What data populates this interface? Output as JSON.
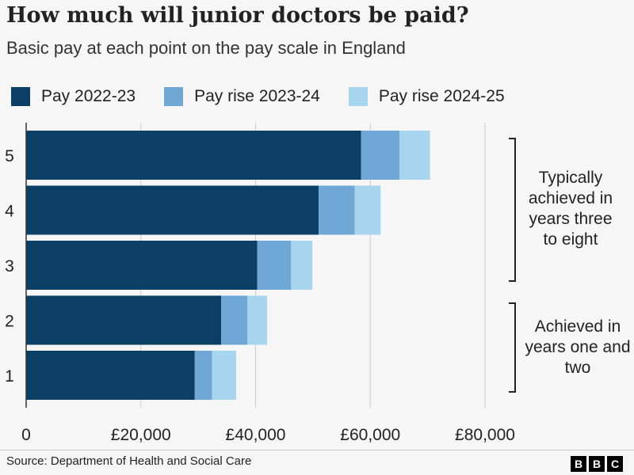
{
  "title": "How much will junior doctors be paid?",
  "subtitle": "Basic pay at each point on the pay scale in England",
  "source": "Source: Department of Health and Social Care",
  "logo": "BBC",
  "annotations": [
    "Typically achieved in years three to eight",
    "Achieved in years one and two"
  ],
  "chart_data": {
    "type": "bar",
    "orientation": "horizontal",
    "stacked": true,
    "categories": [
      "5",
      "4",
      "3",
      "2",
      "1"
    ],
    "series": [
      {
        "name": "Pay 2022-23",
        "color": "#0b3f66",
        "values": [
          58400,
          51000,
          40300,
          34000,
          29400
        ]
      },
      {
        "name": "Pay rise 2023-24",
        "color": "#6fa8d6",
        "values": [
          6700,
          6300,
          5900,
          4600,
          3000
        ]
      },
      {
        "name": "Pay rise 2024-25",
        "color": "#a7d5ee",
        "values": [
          5300,
          4500,
          3700,
          3400,
          4200
        ]
      }
    ],
    "xlim": [
      0,
      80000
    ],
    "x_ticks": [
      0,
      20000,
      40000,
      60000,
      80000
    ],
    "x_tick_labels": [
      "0",
      "£20,000",
      "£40,000",
      "£60,000",
      "£80,000"
    ],
    "grid": true,
    "legend": "top"
  }
}
